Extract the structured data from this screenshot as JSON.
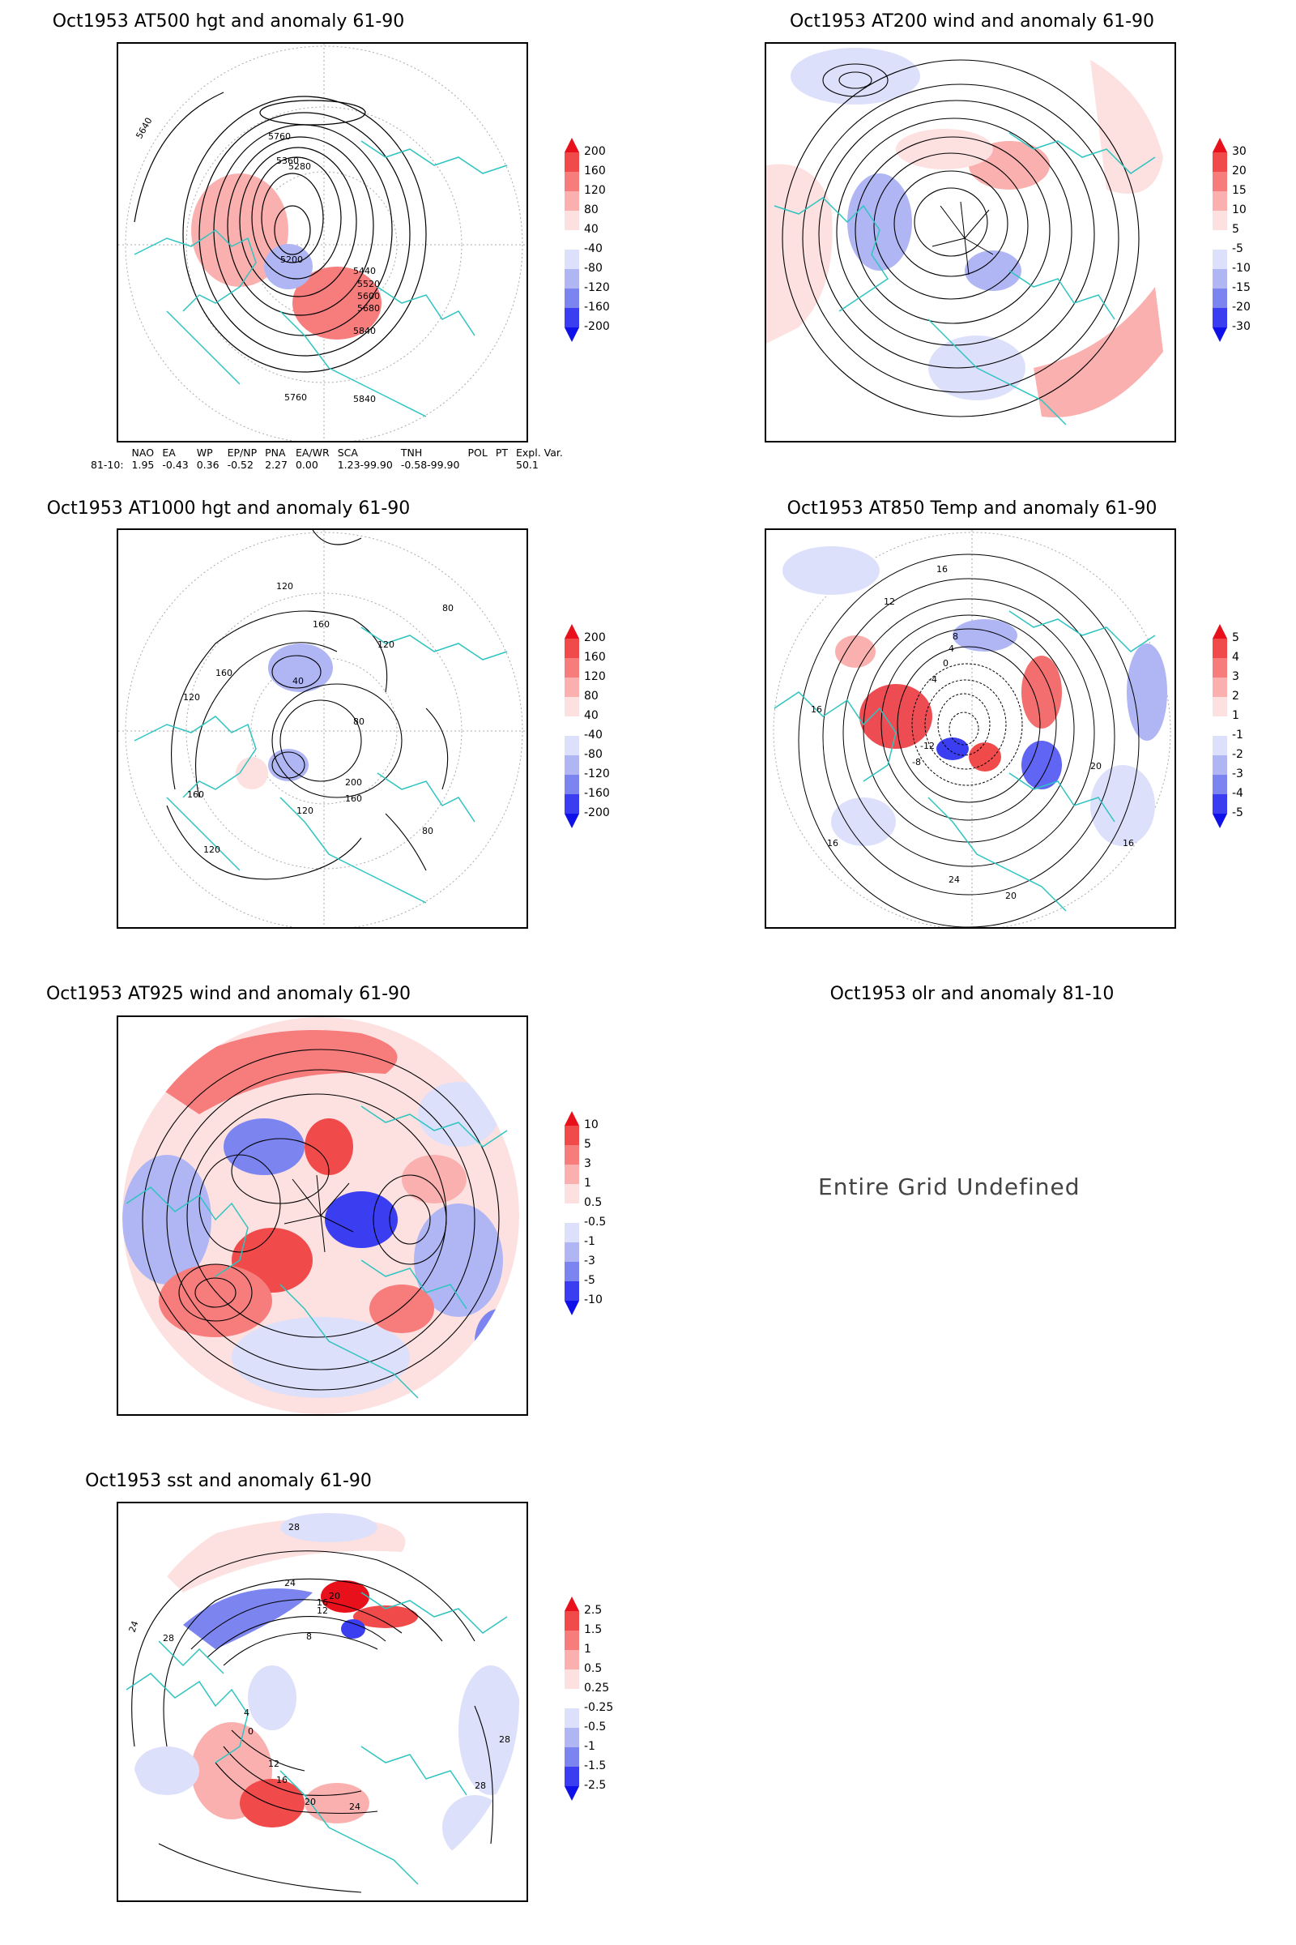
{
  "panels": [
    {
      "title": "Oct1953 AT500 hgt and anomaly 61-90",
      "contour_labels": [
        "5640",
        "5760",
        "5280",
        "5360",
        "5200",
        "5760",
        "5840",
        "5840",
        "5440",
        "5520",
        "5600",
        "5680"
      ]
    },
    {
      "title": "Oct1953 AT200 wind and anomaly 61-90"
    },
    {
      "title": "Oct1953 AT1000 hgt and anomaly 61-90",
      "contour_labels": [
        "120",
        "160",
        "80",
        "120",
        "40",
        "160",
        "120",
        "80",
        "200",
        "160",
        "120",
        "80",
        "120",
        "160"
      ]
    },
    {
      "title": "Oct1953 AT850 Temp and anomaly 61-90",
      "contour_labels": [
        "16",
        "12",
        "8",
        "4",
        "0",
        "-4",
        "-8",
        "-12",
        "16",
        "20",
        "24",
        "20",
        "16",
        "16"
      ]
    },
    {
      "title": "Oct1953 AT925 wind and anomaly 61-90"
    },
    {
      "title": "Oct1953 olr and anomaly 81-10",
      "message": "Entire Grid Undefined"
    },
    {
      "title": "Oct1953 sst and anomaly 61-90",
      "contour_labels": [
        "28",
        "24",
        "28",
        "24",
        "20",
        "16",
        "12",
        "8",
        "4",
        "0",
        "12",
        "16",
        "20",
        "24",
        "28",
        "28"
      ]
    }
  ],
  "colorbars": {
    "hgt": {
      "labels": [
        "200",
        "160",
        "120",
        "80",
        "40",
        "-40",
        "-80",
        "-120",
        "-160",
        "-200"
      ],
      "colors": [
        "#e8101a",
        "#f04a4a",
        "#f77c7c",
        "#fbb0b0",
        "#fde0e0",
        "#ffffff",
        "#dde0fa",
        "#b0b6f4",
        "#7c84ef",
        "#3a3ef0",
        "#1010e8"
      ]
    },
    "wind200": {
      "labels": [
        "30",
        "20",
        "15",
        "10",
        "5",
        "-5",
        "-10",
        "-15",
        "-20",
        "-30"
      ],
      "colors": [
        "#e8101a",
        "#f04a4a",
        "#f77c7c",
        "#fbb0b0",
        "#fde0e0",
        "#ffffff",
        "#dde0fa",
        "#b0b6f4",
        "#7c84ef",
        "#3a3ef0",
        "#1010e8"
      ]
    },
    "temp": {
      "labels": [
        "5",
        "4",
        "3",
        "2",
        "1",
        "-1",
        "-2",
        "-3",
        "-4",
        "-5"
      ],
      "colors": [
        "#e8101a",
        "#f04a4a",
        "#f77c7c",
        "#fbb0b0",
        "#fde0e0",
        "#ffffff",
        "#dde0fa",
        "#b0b6f4",
        "#7c84ef",
        "#3a3ef0",
        "#1010e8"
      ]
    },
    "wind925": {
      "labels": [
        "10",
        "5",
        "3",
        "1",
        "0.5",
        "-0.5",
        "-1",
        "-3",
        "-5",
        "-10"
      ],
      "colors": [
        "#e8101a",
        "#f04a4a",
        "#f77c7c",
        "#fbb0b0",
        "#fde0e0",
        "#ffffff",
        "#dde0fa",
        "#b0b6f4",
        "#7c84ef",
        "#3a3ef0",
        "#1010e8"
      ]
    },
    "sst": {
      "labels": [
        "2.5",
        "1.5",
        "1",
        "0.5",
        "0.25",
        "-0.25",
        "-0.5",
        "-1",
        "-1.5",
        "-2.5"
      ],
      "colors": [
        "#e8101a",
        "#f04a4a",
        "#f77c7c",
        "#fbb0b0",
        "#fde0e0",
        "#ffffff",
        "#dde0fa",
        "#b0b6f4",
        "#7c84ef",
        "#3a3ef0",
        "#1010e8"
      ]
    }
  },
  "indices": {
    "headers": [
      "NAO",
      "EA",
      "WP",
      "EP/NP",
      "PNA",
      "EA/WR",
      "SCA",
      "TNH",
      "POL",
      "PT",
      "Expl. Var."
    ],
    "row_label": "81-10:",
    "values": [
      "1.95",
      "-0.43",
      "0.36",
      "-0.52",
      "2.27",
      "0.00",
      "1.23-99.90",
      "-0.58-99.90",
      "",
      "",
      "50.1"
    ]
  },
  "colors": {
    "land_outline": "#2ec4c0",
    "contour": "#000000",
    "grid": "#999999"
  }
}
